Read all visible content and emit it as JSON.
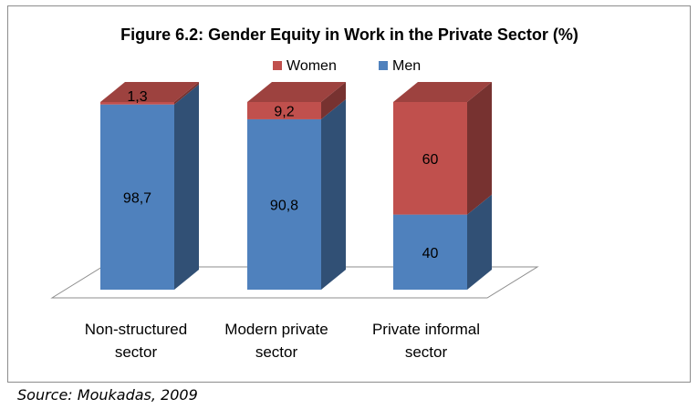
{
  "chart_data": {
    "type": "bar",
    "stacked": true,
    "three_d": true,
    "title": "Figure 6.2: Gender Equity in Work in the Private Sector (%)",
    "categories": [
      [
        "Non-structured",
        "sector"
      ],
      [
        "Modern private",
        "sector"
      ],
      [
        "Private informal",
        "sector"
      ]
    ],
    "series": [
      {
        "name": "Men",
        "color": "#4f81bd",
        "values": [
          98.7,
          90.8,
          40
        ],
        "labels": [
          "98,7",
          "90,8",
          "40"
        ]
      },
      {
        "name": "Women",
        "color": "#c0504d",
        "values": [
          1.3,
          9.2,
          60
        ],
        "labels": [
          "1,3",
          "9,2",
          "60"
        ]
      }
    ],
    "legend_order": [
      "Women",
      "Men"
    ],
    "legend_position": "top",
    "ylim": [
      0,
      100
    ],
    "grid": false
  },
  "source": "Source: Moukadas, 2009"
}
